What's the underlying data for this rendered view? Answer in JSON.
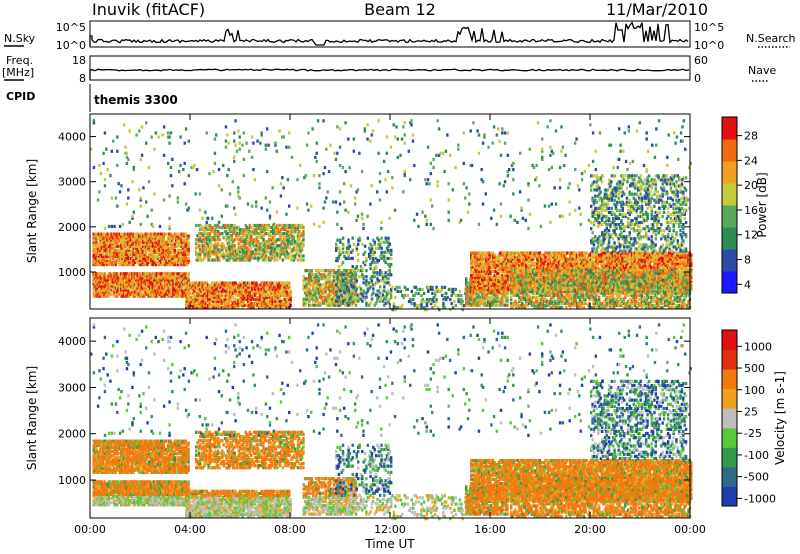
{
  "header": {
    "station": "Inuvik (fitACF)",
    "beam": "Beam 12",
    "date": "11/Mar/2010"
  },
  "status_panels": {
    "nsky_label": "N.Sky",
    "nsky_ticks": [
      "10^5",
      "10^0"
    ],
    "nsearch_label": "N.Search",
    "nsearch_ticks": [
      "10^5",
      "10^0"
    ],
    "freq_label": "Freq.",
    "freq_unit": "[MHz]",
    "freq_ticks": [
      "18",
      "8"
    ],
    "nave_label": "Nave",
    "nave_ticks": [
      "60",
      "0"
    ],
    "cpid_label": "CPID",
    "cpid_value": "themis 3300"
  },
  "colors": {
    "power": [
      "#1a1aff",
      "#2a4aa8",
      "#2e8b57",
      "#5aa85a",
      "#c8c83c",
      "#f0a020",
      "#f06a10",
      "#e21010"
    ],
    "velocity": [
      "#1f3fb0",
      "#2e6a8a",
      "#2e9a4a",
      "#5ac83c",
      "#bebebe",
      "#f0a020",
      "#f07a10",
      "#e03010",
      "#e21010"
    ]
  },
  "chart_data": [
    {
      "type": "heatmap",
      "panel": "power",
      "xlabel": "",
      "ylabel": "Slant Range [km]",
      "xlim": [
        "00:00",
        "24:00"
      ],
      "ylim": [
        180,
        4500
      ],
      "x_ticks": [
        "00:00",
        "04:00",
        "08:00",
        "12:00",
        "16:00",
        "20:00",
        "00:00"
      ],
      "y_ticks": [
        1000,
        2000,
        3000,
        4000
      ],
      "colorbar_label": "Power [dB]",
      "colorbar_ticks": [
        "28",
        "24",
        "20",
        "16",
        "12",
        "8",
        "4"
      ],
      "colorbar_range": [
        0,
        30
      ]
    },
    {
      "type": "heatmap",
      "panel": "velocity",
      "xlabel": "Time UT",
      "ylabel": "Slant Range [km]",
      "xlim": [
        "00:00",
        "24:00"
      ],
      "ylim": [
        180,
        4500
      ],
      "x_ticks": [
        "00:00",
        "04:00",
        "08:00",
        "12:00",
        "16:00",
        "20:00",
        "00:00"
      ],
      "y_ticks": [
        1000,
        2000,
        3000,
        4000
      ],
      "colorbar_label": "Velocity [m s-1]",
      "colorbar_ticks": [
        "1000",
        "500",
        "100",
        "25",
        "-25",
        "-100",
        "-500",
        "-1000"
      ],
      "colorbar_range": [
        -1200,
        1200
      ]
    }
  ]
}
